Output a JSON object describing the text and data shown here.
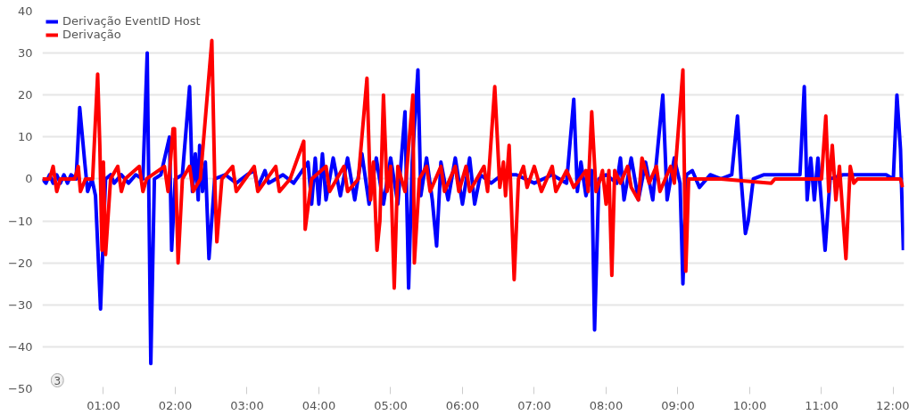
{
  "chart_data": {
    "type": "line",
    "xlim": [
      0.15,
      12.15
    ],
    "ylim": [
      -50,
      40
    ],
    "xticks": [
      {
        "value": 1,
        "label": "01:00"
      },
      {
        "value": 2,
        "label": "02:00"
      },
      {
        "value": 3,
        "label": "03:00"
      },
      {
        "value": 4,
        "label": "04:00"
      },
      {
        "value": 5,
        "label": "05:00"
      },
      {
        "value": 6,
        "label": "06:00"
      },
      {
        "value": 7,
        "label": "07:00"
      },
      {
        "value": 8,
        "label": "08:00"
      },
      {
        "value": 9,
        "label": "09:00"
      },
      {
        "value": 10,
        "label": "10:00"
      },
      {
        "value": 11,
        "label": "11:00"
      },
      {
        "value": 12,
        "label": "12:00"
      }
    ],
    "yticks": [
      -50,
      -40,
      -30,
      -20,
      -10,
      0,
      10,
      20,
      30,
      40
    ],
    "grid": "y",
    "legend": "top left",
    "marker": "none",
    "line_style": "solid",
    "annotations": [
      "3"
    ],
    "series": [
      {
        "name": "Derivação EventID Host",
        "color": "#0000ff",
        "x": [
          0.15,
          0.2,
          0.25,
          0.3,
          0.35,
          0.4,
          0.45,
          0.5,
          0.55,
          0.62,
          0.67,
          0.74,
          0.78,
          0.84,
          0.89,
          0.96,
          1.03,
          1.1,
          1.15,
          1.25,
          1.35,
          1.45,
          1.55,
          1.61,
          1.66,
          1.71,
          1.8,
          1.92,
          1.95,
          2.0,
          2.1,
          2.2,
          2.24,
          2.28,
          2.32,
          2.34,
          2.38,
          2.42,
          2.47,
          2.55,
          2.7,
          2.85,
          3.0,
          3.1,
          3.15,
          3.25,
          3.3,
          3.5,
          3.65,
          3.85,
          3.9,
          3.95,
          4.0,
          4.05,
          4.1,
          4.2,
          4.3,
          4.4,
          4.5,
          4.6,
          4.7,
          4.8,
          4.9,
          5.0,
          5.1,
          5.2,
          5.25,
          5.3,
          5.38,
          5.42,
          5.5,
          5.58,
          5.64,
          5.7,
          5.8,
          5.9,
          6.0,
          6.1,
          6.17,
          6.25,
          6.4,
          6.55,
          6.75,
          7.0,
          7.25,
          7.45,
          7.55,
          7.6,
          7.65,
          7.72,
          7.8,
          7.84,
          7.9,
          8.0,
          8.15,
          8.2,
          8.25,
          8.35,
          8.45,
          8.55,
          8.65,
          8.79,
          8.85,
          8.95,
          9.03,
          9.07,
          9.12,
          9.2,
          9.3,
          9.45,
          9.6,
          9.75,
          9.83,
          9.88,
          9.94,
          9.98,
          10.05,
          10.2,
          10.5,
          10.7,
          10.76,
          10.8,
          10.85,
          10.9,
          10.95,
          11.05,
          11.12,
          11.3,
          11.6,
          11.9,
          12.0,
          12.05,
          12.1,
          12.14
        ],
        "values": [
          0,
          -1,
          1,
          -1,
          1,
          -1,
          1,
          -1,
          1,
          0,
          17,
          4,
          -3,
          0,
          -4,
          -31,
          0,
          1,
          -1,
          1,
          -1,
          1,
          0,
          30,
          -44,
          0,
          1,
          10,
          -17,
          0,
          1,
          22,
          -3,
          6,
          -5,
          8,
          -3,
          4,
          -19,
          0,
          1,
          -1,
          1,
          2,
          -2,
          2,
          -1,
          1,
          -1,
          4,
          -6,
          5,
          -6,
          6,
          -5,
          5,
          -4,
          5,
          -5,
          6,
          -6,
          5,
          -6,
          5,
          -6,
          16,
          -26,
          4,
          26,
          -4,
          5,
          -5,
          -16,
          4,
          -5,
          5,
          -6,
          5,
          -6,
          1,
          -1,
          1,
          1,
          -1,
          1,
          -1,
          19,
          -3,
          4,
          -4,
          2,
          -36,
          0,
          1,
          -1,
          5,
          -5,
          5,
          -5,
          4,
          -5,
          20,
          -5,
          5,
          -1,
          -25,
          1,
          2,
          -2,
          1,
          0,
          1,
          15,
          0,
          -13,
          -10,
          0,
          1,
          1,
          1,
          22,
          -5,
          5,
          -5,
          5,
          -17,
          0,
          1,
          1,
          1,
          0,
          20,
          7,
          -17
        ]
      },
      {
        "name": "Derivação",
        "color": "#ff0000",
        "x": [
          0.15,
          0.25,
          0.3,
          0.35,
          0.4,
          0.6,
          0.65,
          0.68,
          0.75,
          0.85,
          0.92,
          0.95,
          0.98,
          1.0,
          1.03,
          1.1,
          1.2,
          1.25,
          1.3,
          1.5,
          1.55,
          1.6,
          1.85,
          1.9,
          1.97,
          1.99,
          2.04,
          2.1,
          2.2,
          2.25,
          2.35,
          2.51,
          2.55,
          2.58,
          2.65,
          2.8,
          2.85,
          3.1,
          3.15,
          3.4,
          3.45,
          3.6,
          3.79,
          3.81,
          3.9,
          4.1,
          4.15,
          4.35,
          4.4,
          4.55,
          4.67,
          4.72,
          4.76,
          4.81,
          4.85,
          4.9,
          4.95,
          5.0,
          5.05,
          5.1,
          5.2,
          5.31,
          5.33,
          5.4,
          5.5,
          5.55,
          5.7,
          5.75,
          5.9,
          5.95,
          6.05,
          6.1,
          6.3,
          6.35,
          6.45,
          6.52,
          6.57,
          6.6,
          6.65,
          6.72,
          6.78,
          6.85,
          6.9,
          7.0,
          7.1,
          7.25,
          7.3,
          7.45,
          7.55,
          7.72,
          7.75,
          7.8,
          7.86,
          7.92,
          7.95,
          8.0,
          8.04,
          8.08,
          8.12,
          8.2,
          8.3,
          8.35,
          8.45,
          8.5,
          8.6,
          8.7,
          8.75,
          8.9,
          8.95,
          9.07,
          9.11,
          9.15,
          9.6,
          10.3,
          10.35,
          11.0,
          11.06,
          11.1,
          11.15,
          11.2,
          11.25,
          11.34,
          11.4,
          11.45,
          11.5,
          12.1,
          12.13
        ],
        "values": [
          0,
          0,
          3,
          -3,
          0,
          0,
          3,
          -3,
          0,
          0,
          25,
          8,
          -17,
          4,
          -18,
          0,
          3,
          -3,
          0,
          3,
          -3,
          0,
          3,
          -3,
          12,
          12,
          -20,
          0,
          3,
          -3,
          0,
          33,
          0,
          -15,
          0,
          3,
          -3,
          3,
          -3,
          3,
          -3,
          0,
          9,
          -12,
          0,
          3,
          -3,
          3,
          -3,
          0,
          24,
          -5,
          4,
          -17,
          -10,
          20,
          -3,
          3,
          -26,
          3,
          -3,
          20,
          -20,
          0,
          3,
          -3,
          3,
          -3,
          3,
          -3,
          3,
          -3,
          3,
          -3,
          22,
          -2,
          4,
          -4,
          8,
          -24,
          0,
          3,
          -2,
          3,
          -3,
          3,
          -3,
          2,
          -2,
          2,
          -3,
          16,
          -3,
          0,
          2,
          -6,
          2,
          -23,
          2,
          -1,
          3,
          -2,
          -5,
          5,
          -1,
          3,
          -3,
          3,
          -1,
          26,
          -22,
          0,
          0,
          -1,
          0,
          0,
          15,
          -3,
          8,
          -5,
          3,
          -19,
          3,
          -1,
          0,
          0,
          -2
        ]
      }
    ]
  }
}
